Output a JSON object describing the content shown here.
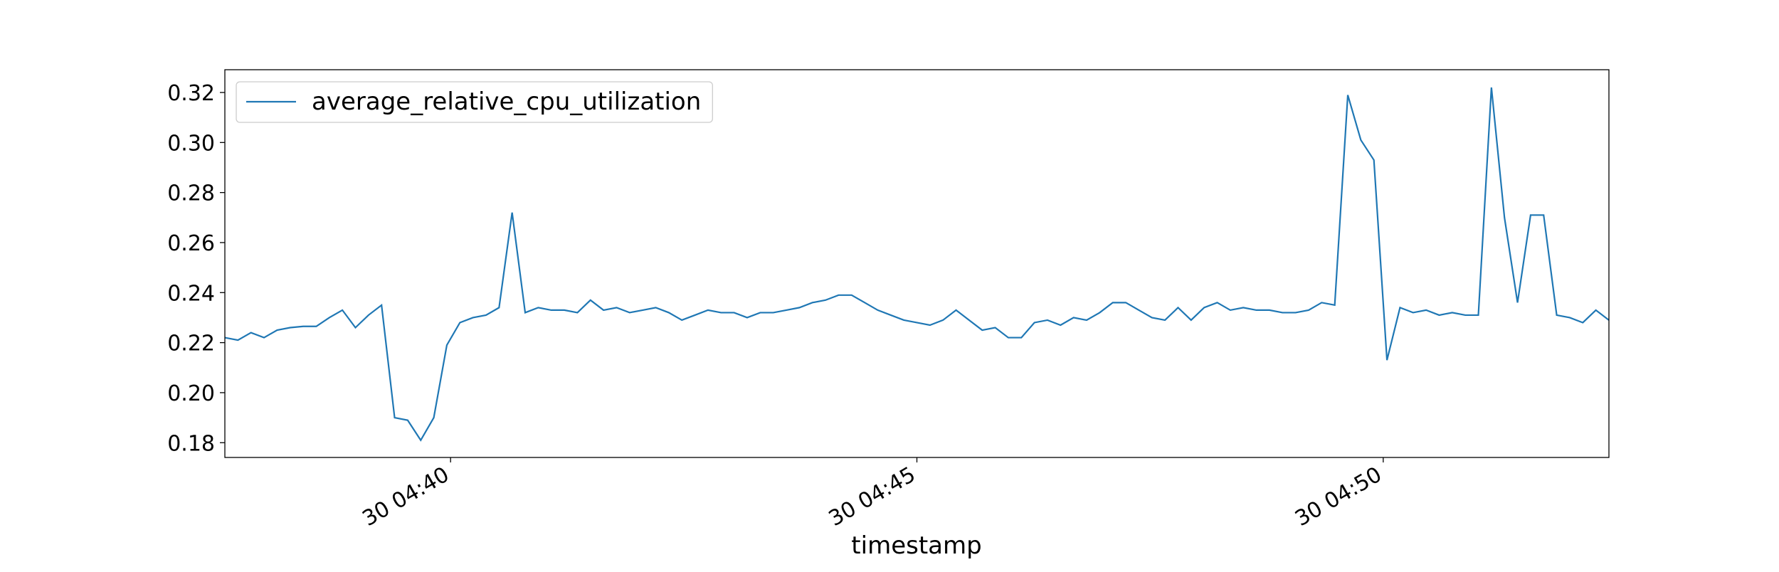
{
  "chart_data": {
    "type": "line",
    "x_label": "timestamp",
    "x": [
      37.58,
      37.72,
      37.86,
      38.0,
      38.14,
      38.28,
      38.42,
      38.56,
      38.7,
      38.84,
      38.98,
      39.12,
      39.26,
      39.4,
      39.54,
      39.68,
      39.82,
      39.96,
      40.1,
      40.24,
      40.38,
      40.52,
      40.66,
      40.8,
      40.94,
      41.08,
      41.22,
      41.36,
      41.5,
      41.64,
      41.78,
      41.92,
      42.06,
      42.2,
      42.34,
      42.48,
      42.62,
      42.76,
      42.9,
      43.04,
      43.18,
      43.32,
      43.46,
      43.6,
      43.74,
      43.88,
      44.02,
      44.16,
      44.3,
      44.44,
      44.58,
      44.72,
      44.86,
      45.0,
      45.14,
      45.28,
      45.42,
      45.56,
      45.7,
      45.84,
      45.98,
      46.12,
      46.26,
      46.4,
      46.54,
      46.68,
      46.82,
      46.96,
      47.1,
      47.24,
      47.38,
      47.52,
      47.66,
      47.8,
      47.94,
      48.08,
      48.22,
      48.36,
      48.5,
      48.64,
      48.78,
      48.92,
      49.06,
      49.2,
      49.34,
      49.48,
      49.62,
      49.76,
      49.9,
      50.04,
      50.18,
      50.32,
      50.46,
      50.6,
      50.74,
      50.88,
      51.02,
      51.16,
      51.3,
      51.44,
      51.58,
      51.72,
      51.86,
      52.0,
      52.14,
      52.28,
      52.42
    ],
    "series": [
      {
        "name": "average_relative_cpu_utilization",
        "color": "#1f77b4",
        "values": [
          0.222,
          0.221,
          0.224,
          0.222,
          0.225,
          0.226,
          0.2265,
          0.2265,
          0.23,
          0.233,
          0.226,
          0.231,
          0.235,
          0.19,
          0.189,
          0.181,
          0.19,
          0.219,
          0.228,
          0.23,
          0.231,
          0.234,
          0.272,
          0.232,
          0.234,
          0.233,
          0.233,
          0.232,
          0.237,
          0.233,
          0.234,
          0.232,
          0.233,
          0.234,
          0.232,
          0.229,
          0.231,
          0.233,
          0.232,
          0.232,
          0.23,
          0.232,
          0.232,
          0.233,
          0.234,
          0.236,
          0.237,
          0.239,
          0.239,
          0.236,
          0.233,
          0.231,
          0.229,
          0.228,
          0.227,
          0.229,
          0.233,
          0.229,
          0.225,
          0.226,
          0.222,
          0.222,
          0.228,
          0.229,
          0.227,
          0.23,
          0.229,
          0.232,
          0.236,
          0.236,
          0.233,
          0.23,
          0.229,
          0.234,
          0.229,
          0.234,
          0.236,
          0.233,
          0.234,
          0.233,
          0.233,
          0.232,
          0.232,
          0.233,
          0.236,
          0.235,
          0.319,
          0.301,
          0.293,
          0.213,
          0.234,
          0.232,
          0.233,
          0.231,
          0.232,
          0.231,
          0.231,
          0.322,
          0.27,
          0.236,
          0.271,
          0.271,
          0.231,
          0.23,
          0.228,
          0.233,
          0.229
        ]
      }
    ],
    "xlim": [
      37.58,
      52.42
    ],
    "xticks": [
      {
        "value": 40,
        "label": "30 04:40"
      },
      {
        "value": 45,
        "label": "30 04:45"
      },
      {
        "value": 50,
        "label": "30 04:50"
      }
    ],
    "ylim": [
      0.1741,
      0.3291
    ],
    "yticks": [
      0.18,
      {
        "value": 0.2,
        "label": "0.20"
      },
      0.22,
      0.24,
      0.26,
      0.28,
      {
        "value": 0.3,
        "label": "0.30"
      },
      0.32
    ],
    "legend": "upper left"
  }
}
